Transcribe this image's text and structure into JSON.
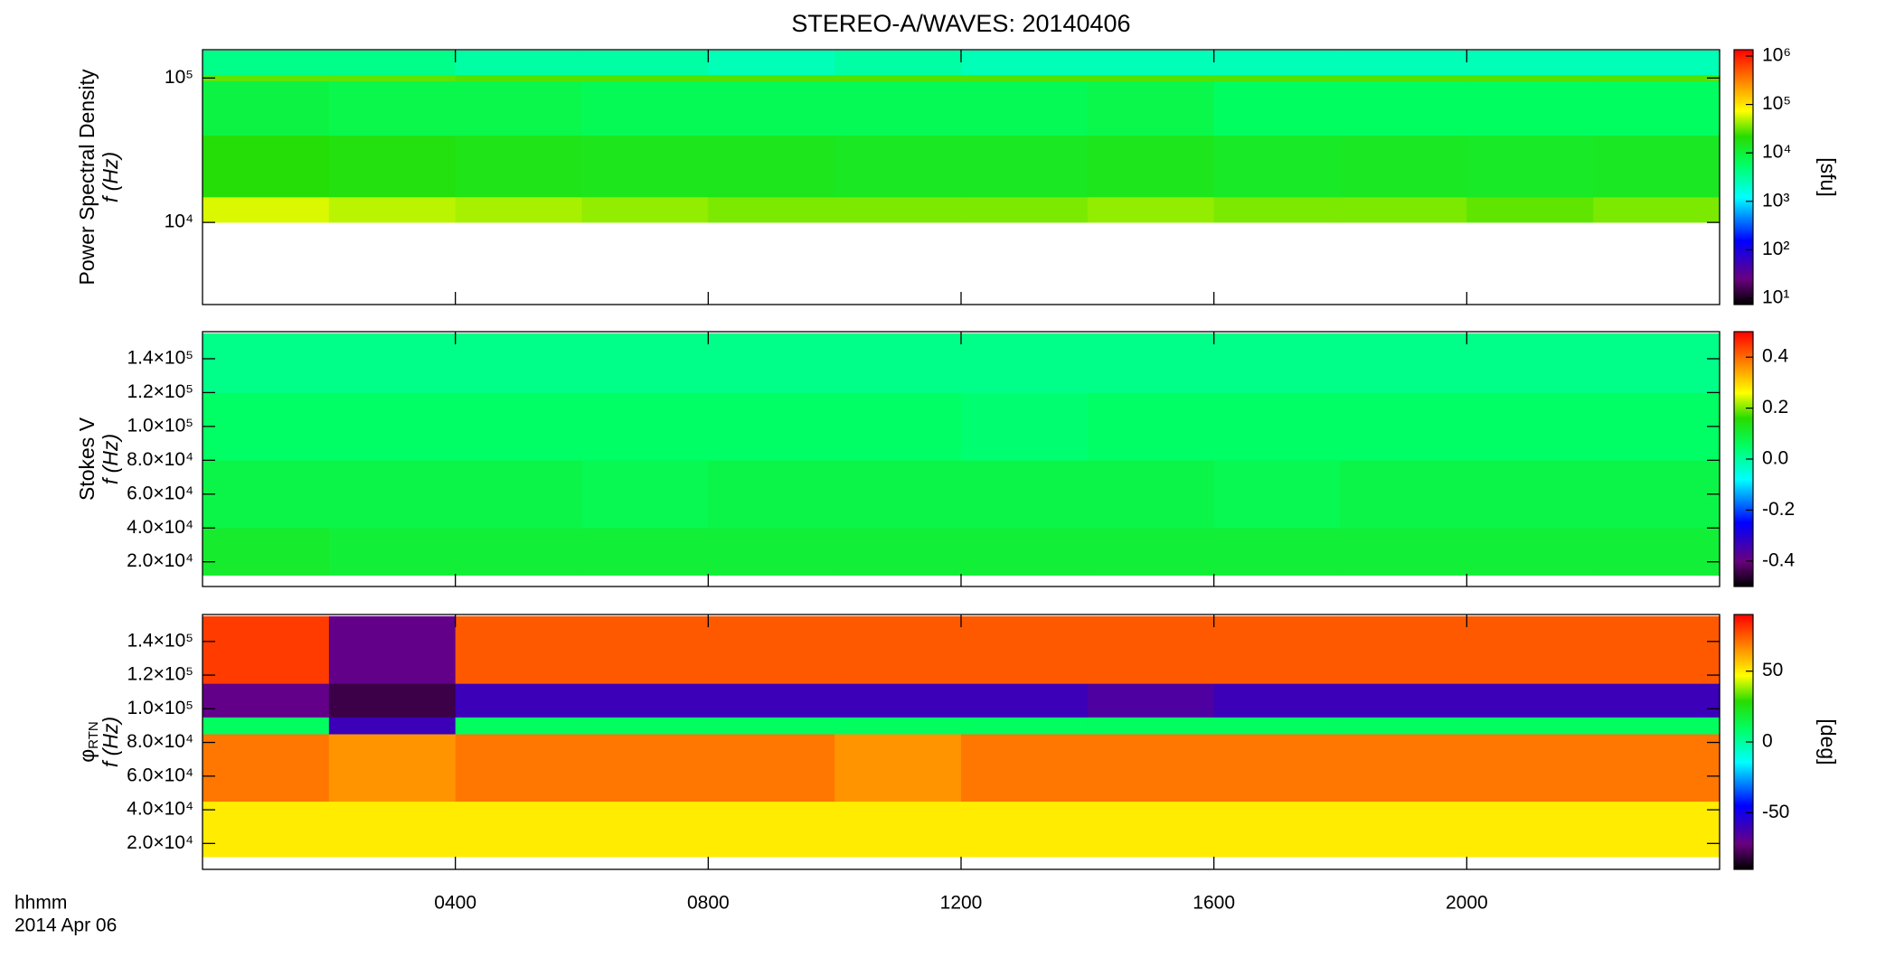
{
  "chart_data": [
    {
      "type": "heatmap",
      "title": "STEREO-A/WAVES: 20140406",
      "ylabel_top": "Power Spectral Density",
      "ylabel": "f (Hz)",
      "ylog": true,
      "ylim": [
        2700,
        157000
      ],
      "yticks": [
        {
          "value": 10000,
          "label": "10⁴"
        },
        {
          "value": 100000,
          "label": "10⁵"
        }
      ],
      "x": [
        0,
        2,
        4,
        6,
        8,
        10,
        12,
        14,
        16,
        18,
        20,
        22,
        24
      ],
      "y": [
        10000,
        15000,
        40000,
        95000,
        105000,
        155000
      ],
      "z": [
        [
          60000,
          50000,
          45000,
          40000,
          35000,
          35000,
          35000,
          40000,
          35000,
          35000,
          30000,
          35000
        ],
        [
          20000,
          18000,
          16000,
          15000,
          15000,
          14000,
          14000,
          15000,
          13000,
          14000,
          13000,
          14000
        ],
        [
          9000,
          8000,
          8000,
          7000,
          7000,
          7000,
          7000,
          8000,
          6000,
          6000,
          6000,
          6000
        ],
        [
          30000,
          30000,
          28000,
          28000,
          28000,
          28000,
          28000,
          28000,
          28000,
          28000,
          28000,
          28000
        ],
        [
          4000,
          4000,
          3000,
          3000,
          2500,
          3000,
          2500,
          2500,
          2500,
          2500,
          2500,
          2500
        ]
      ],
      "zlog": true,
      "zlim": [
        7.4,
        1350000
      ],
      "zticks": [
        {
          "value": 10,
          "label": "10¹"
        },
        {
          "value": 100,
          "label": "10²"
        },
        {
          "value": 1000,
          "label": "10³"
        },
        {
          "value": 10000,
          "label": "10⁴"
        },
        {
          "value": 100000,
          "label": "10⁵"
        },
        {
          "value": 1000000,
          "label": "10⁶"
        }
      ],
      "colorbar_label": "[sfu]"
    },
    {
      "type": "heatmap",
      "ylabel_top": "Stokes V",
      "ylabel": "f (Hz)",
      "ylog": false,
      "ylim": [
        5400,
        156000
      ],
      "yticks": [
        {
          "value": 20000,
          "label": "2.0×10⁴"
        },
        {
          "value": 40000,
          "label": "4.0×10⁴"
        },
        {
          "value": 60000,
          "label": "6.0×10⁴"
        },
        {
          "value": 80000,
          "label": "8.0×10⁴"
        },
        {
          "value": 100000,
          "label": "1.0×10⁵"
        },
        {
          "value": 120000,
          "label": "1.2×10⁵"
        },
        {
          "value": 140000,
          "label": "1.4×10⁵"
        }
      ],
      "x": [
        0,
        2,
        4,
        6,
        8,
        10,
        12,
        14,
        16,
        18,
        20,
        22,
        24
      ],
      "y": [
        12000,
        40000,
        80000,
        120000,
        155000
      ],
      "z": [
        [
          0.11,
          0.1,
          0.1,
          0.1,
          0.1,
          0.1,
          0.1,
          0.1,
          0.1,
          0.1,
          0.1,
          0.1
        ],
        [
          0.08,
          0.08,
          0.08,
          0.07,
          0.08,
          0.08,
          0.08,
          0.08,
          0.07,
          0.08,
          0.08,
          0.08
        ],
        [
          0.05,
          0.05,
          0.05,
          0.05,
          0.05,
          0.05,
          0.04,
          0.05,
          0.05,
          0.05,
          0.05,
          0.05
        ],
        [
          0.02,
          0.02,
          0.02,
          0.02,
          0.02,
          0.02,
          0.02,
          0.02,
          0.02,
          0.02,
          0.02,
          0.02
        ]
      ],
      "zlog": false,
      "zlim": [
        -0.5,
        0.5
      ],
      "zticks": [
        {
          "value": -0.4,
          "label": "-0.4"
        },
        {
          "value": -0.2,
          "label": "-0.2"
        },
        {
          "value": 0,
          "label": "0.0"
        },
        0.2,
        0.4
      ]
    },
    {
      "type": "heatmap",
      "ylabel_top": "φ",
      "ylabel_top_subscript": "RTN",
      "ylabel": "f (Hz)",
      "ylog": false,
      "ylim": [
        4600,
        156000
      ],
      "yticks": [
        {
          "value": 20000,
          "label": "2.0×10⁴"
        },
        {
          "value": 40000,
          "label": "4.0×10⁴"
        },
        {
          "value": 60000,
          "label": "6.0×10⁴"
        },
        {
          "value": 80000,
          "label": "8.0×10⁴"
        },
        {
          "value": 100000,
          "label": "1.0×10⁵"
        },
        {
          "value": 120000,
          "label": "1.2×10⁵"
        },
        {
          "value": 140000,
          "label": "1.4×10⁵"
        }
      ],
      "x": [
        0,
        2,
        4,
        6,
        8,
        10,
        12,
        14,
        16,
        18,
        20,
        22,
        24
      ],
      "y": [
        12000,
        45000,
        85000,
        95000,
        115000,
        155000
      ],
      "z": [
        [
          50,
          50,
          50,
          50,
          50,
          50,
          50,
          50,
          50,
          50,
          50,
          50
        ],
        [
          70,
          65,
          70,
          70,
          70,
          65,
          70,
          70,
          70,
          70,
          70,
          70
        ],
        [
          10,
          -60,
          10,
          10,
          10,
          10,
          10,
          10,
          10,
          10,
          10,
          10
        ],
        [
          -70,
          -80,
          -60,
          -60,
          -60,
          -60,
          -60,
          -65,
          -60,
          -60,
          -60,
          -60
        ],
        [
          80,
          -70,
          75,
          75,
          75,
          75,
          75,
          75,
          75,
          75,
          75,
          75
        ]
      ],
      "zlog": false,
      "zlim": [
        -90,
        90
      ],
      "zticks": [
        -50,
        0,
        50
      ],
      "colorbar_label": "[deg]",
      "xlim": [
        0,
        24
      ],
      "xticks": [
        {
          "value": 4,
          "label": "0400"
        },
        {
          "value": 8,
          "label": "0800"
        },
        {
          "value": 12,
          "label": "1200"
        },
        {
          "value": 16,
          "label": "1600"
        },
        {
          "value": 20,
          "label": "2000"
        }
      ],
      "xlabel": "hhmm",
      "date_label": "2014 Apr 06"
    }
  ]
}
